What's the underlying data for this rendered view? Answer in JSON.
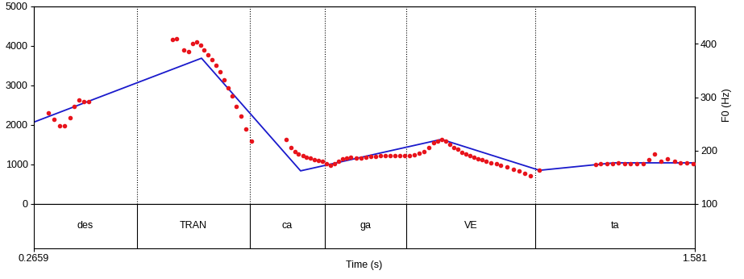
{
  "chart_data": {
    "type": "line",
    "x_label": "Time (s)",
    "y2_label": "F0 (Hz)",
    "xlim": [
      0.2659,
      1.581
    ],
    "xticks": [
      0.2659,
      1.581
    ],
    "ylim": [
      0,
      5000
    ],
    "yticks": [
      0,
      1000,
      2000,
      3000,
      4000,
      5000
    ],
    "y2lim": [
      100,
      470
    ],
    "y2ticks": [
      100,
      200,
      300,
      400
    ],
    "series": [
      {
        "type": "scatter",
        "color": "#e8141c",
        "marker": "o",
        "axis": "y2",
        "x": [
          0.296,
          0.306,
          0.318,
          0.328,
          0.338,
          0.347,
          0.357,
          0.366,
          0.376,
          0.542,
          0.551,
          0.564,
          0.574,
          0.583,
          0.591,
          0.599,
          0.605,
          0.613,
          0.621,
          0.629,
          0.637,
          0.645,
          0.653,
          0.661,
          0.669,
          0.679,
          0.688,
          0.699,
          0.768,
          0.778,
          0.786,
          0.793,
          0.802,
          0.809,
          0.817,
          0.825,
          0.833,
          0.841,
          0.849,
          0.857,
          0.865,
          0.873,
          0.881,
          0.889,
          0.897,
          0.908,
          0.918,
          0.927,
          0.937,
          0.946,
          0.956,
          0.966,
          0.975,
          0.985,
          0.994,
          1.004,
          1.013,
          1.023,
          1.033,
          1.042,
          1.052,
          1.061,
          1.069,
          1.077,
          1.085,
          1.093,
          1.101,
          1.109,
          1.117,
          1.125,
          1.133,
          1.141,
          1.149,
          1.157,
          1.166,
          1.176,
          1.186,
          1.195,
          1.208,
          1.221,
          1.232,
          1.243,
          1.254,
          1.272,
          1.383,
          1.394,
          1.406,
          1.418,
          1.429,
          1.441,
          1.453,
          1.466,
          1.479,
          1.49,
          1.501,
          1.514,
          1.527,
          1.54,
          1.552,
          1.565,
          1.578
        ],
        "values": [
          270,
          259,
          247,
          247,
          262,
          283,
          294,
          291,
          291,
          408,
          409,
          389,
          385,
          400,
          403,
          397,
          389,
          380,
          370,
          359,
          347,
          332,
          317,
          302,
          283,
          264,
          241,
          218,
          221,
          206,
          198,
          194,
          191,
          188,
          186,
          183,
          182,
          180,
          176,
          173,
          176,
          180,
          185,
          186,
          188,
          186,
          186,
          188,
          189,
          189,
          191,
          191,
          191,
          191,
          191,
          191,
          191,
          192,
          195,
          198,
          205,
          214,
          218,
          220,
          217,
          212,
          206,
          202,
          197,
          194,
          191,
          188,
          185,
          183,
          180,
          177,
          176,
          173,
          170,
          165,
          162,
          158,
          153,
          163,
          174,
          176,
          176,
          176,
          177,
          176,
          176,
          176,
          176,
          183,
          194,
          180,
          185,
          180,
          177,
          177,
          176
        ]
      },
      {
        "type": "line",
        "color": "#1a1acc",
        "line_style": "solid",
        "axis": "y2",
        "x": [
          0.2659,
          0.6,
          0.797,
          1.077,
          1.272,
          1.42,
          1.581
        ],
        "values": [
          253,
          373,
          162,
          221,
          163,
          177,
          177
        ]
      }
    ],
    "tier": {
      "boundaries": [
        0.2659,
        0.4715,
        0.6963,
        0.8446,
        1.0071,
        1.2638,
        1.581
      ],
      "labels": [
        "des",
        "TRAN",
        "ca",
        "ga",
        "VE",
        "ta"
      ]
    }
  }
}
